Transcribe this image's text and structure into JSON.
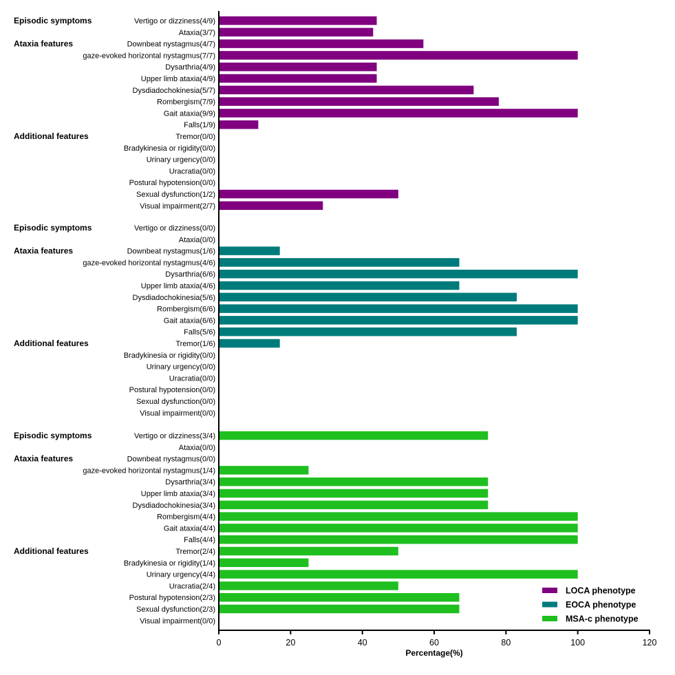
{
  "chart_data": {
    "type": "bar",
    "orientation": "horizontal",
    "xlabel": "Percentage(%)",
    "xlim": [
      0,
      120
    ],
    "xticks": [
      0,
      20,
      40,
      60,
      80,
      100,
      120
    ],
    "grid": false,
    "legend_position": "bottom-right",
    "legend": [
      {
        "label": "LOCA phenotype",
        "color": "#800080"
      },
      {
        "label": "EOCA phenotype",
        "color": "#007b7b"
      },
      {
        "label": "MSA-c phenotype",
        "color": "#1fbf1f"
      }
    ],
    "panels": [
      {
        "series": "LOCA phenotype",
        "color": "#800080",
        "group_labels": [
          {
            "label": "Episodic symptoms",
            "row": 0
          },
          {
            "label": "Ataxia features",
            "row": 2
          },
          {
            "label": "Additional  features",
            "row": 10
          }
        ],
        "categories": [
          "Vertigo or dizziness(4/9)",
          "Ataxia(3/7)",
          "Downbeat nystagmus(4/7)",
          "gaze-evoked horizontal nystagmus(7/7)",
          "Dysarthria(4/9)",
          "Upper limb ataxia(4/9)",
          "Dysdiadochokinesia(5/7)",
          "Rombergism(7/9)",
          "Gait ataxia(9/9)",
          "Falls(1/9)",
          "Tremor(0/0)",
          "Bradykinesia or rigidity(0/0)",
          "Urinary urgency(0/0)",
          "Uracratia(0/0)",
          "Postural hypotension(0/0)",
          "Sexual dysfunction(1/2)",
          "Visual impairment(2/7)"
        ],
        "values": [
          44,
          43,
          57,
          100,
          44,
          44,
          71,
          78,
          100,
          11,
          0,
          0,
          0,
          0,
          0,
          50,
          29
        ]
      },
      {
        "series": "EOCA phenotype",
        "color": "#007b7b",
        "group_labels": [
          {
            "label": "Episodic symptoms",
            "row": 0
          },
          {
            "label": "Ataxia features",
            "row": 2
          },
          {
            "label": "Additional features",
            "row": 10
          }
        ],
        "categories": [
          "Vertigo or dizziness(0/0)",
          "Ataxia(0/0)",
          "Downbeat nystagmus(1/6)",
          "gaze-evoked horizontal nystagmus(4/6)",
          "Dysarthria(6/6)",
          "Upper limb ataxia(4/6)",
          "Dysdiadochokinesia(5/6)",
          "Rombergism(6/6)",
          "Gait ataxia(6/6)",
          "Falls(5/6)",
          "Tremor(1/6)",
          "Bradykinesia or rigidity(0/0)",
          "Urinary urgency(0/0)",
          "Uracratia(0/0)",
          "Postural hypotension(0/0)",
          "Sexual dysfunction(0/0)",
          "Visual impairment(0/0)"
        ],
        "values": [
          0,
          0,
          17,
          67,
          100,
          67,
          83,
          100,
          100,
          83,
          17,
          0,
          0,
          0,
          0,
          0,
          0
        ]
      },
      {
        "series": "MSA-c phenotype",
        "color": "#1fbf1f",
        "group_labels": [
          {
            "label": "Episodic symptoms",
            "row": 0
          },
          {
            "label": "Ataxia features",
            "row": 2
          },
          {
            "label": "Additional features",
            "row": 10
          }
        ],
        "categories": [
          "Vertigo or dizziness(3/4)",
          "Ataxia(0/0)",
          "Downbeat nystagmus(0/0)",
          "gaze-evoked horizontal nystagmus(1/4)",
          "Dysarthria(3/4)",
          "Upper limb ataxia(3/4)",
          "Dysdiadochokinesia(3/4)",
          "Rombergism(4/4)",
          "Gait ataxia(4/4)",
          "Falls(4/4)",
          "Tremor(2/4)",
          "Bradykinesia or rigidity(1/4)",
          "Urinary urgency(4/4)",
          "Uracratia(2/4)",
          "Postural hypotension(2/3)",
          "Sexual dysfunction(2/3)",
          "Visual impairment(0/0)"
        ],
        "values": [
          75,
          0,
          0,
          25,
          75,
          75,
          75,
          100,
          100,
          100,
          50,
          25,
          100,
          50,
          67,
          67,
          0
        ]
      }
    ]
  }
}
